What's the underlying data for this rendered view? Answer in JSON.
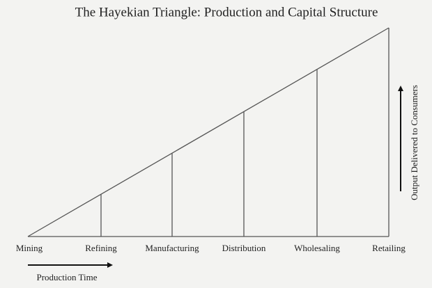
{
  "title": "The Hayekian Triangle: Production and Capital Structure",
  "stages": [
    "Mining",
    "Refining",
    "Manufacturing",
    "Distribution",
    "Wholesaling",
    "Retailing"
  ],
  "x_axis_label": "Production Time",
  "y_axis_label": "Output Delivered to Consumers"
}
